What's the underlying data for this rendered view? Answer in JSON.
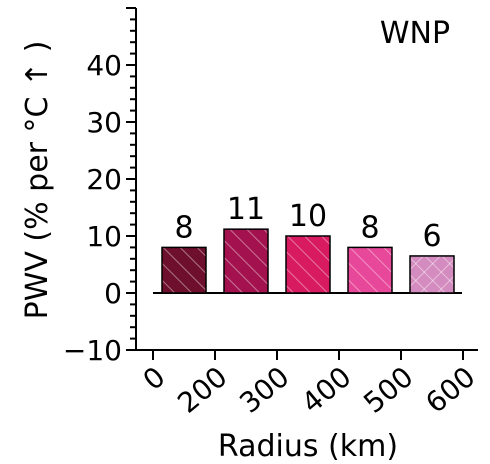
{
  "chart_data": {
    "type": "bar",
    "annotation": "WNP",
    "xlabel": "Radius (km)",
    "ylabel": "PWV (% per °C ↑ )",
    "ylim": [
      -10,
      50
    ],
    "yticks": [
      -10,
      0,
      10,
      20,
      30,
      40
    ],
    "xtick_labels": [
      "0",
      "200",
      "300",
      "400",
      "500",
      "600"
    ],
    "values": [
      8,
      11.2,
      10,
      8,
      6.5
    ],
    "data_labels": [
      "8",
      "11",
      "10",
      "8",
      "6"
    ],
    "colors": [
      "#6e0f2d",
      "#a3124f",
      "#d81b60",
      "#e8489a",
      "#d48bbf"
    ],
    "hatches": [
      "diag",
      "diag",
      "diag",
      "diag",
      "cross"
    ],
    "grid": false
  }
}
